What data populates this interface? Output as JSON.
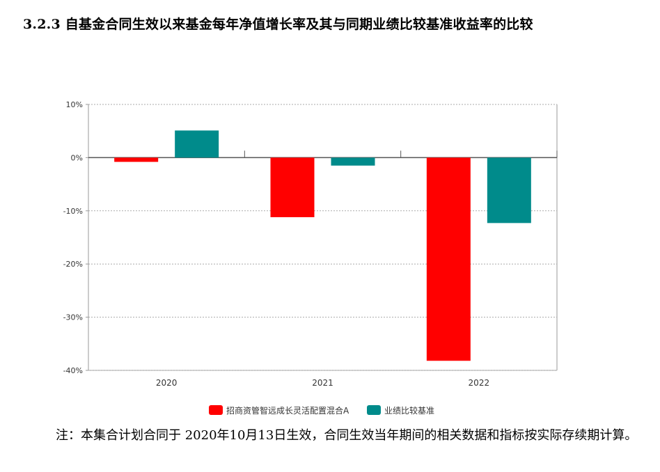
{
  "heading": "3.2.3 自基金合同生效以来基金每年净值增长率及其与同期业绩比较基准收益率的比较",
  "chart_data": {
    "type": "bar",
    "categories": [
      "2020",
      "2021",
      "2022"
    ],
    "series": [
      {
        "name": "招商资管智远成长灵活配置混合A",
        "values": [
          -0.8,
          -11.2,
          -38.2
        ],
        "color": "#ff0000"
      },
      {
        "name": "业绩比较基准",
        "values": [
          5.1,
          -1.5,
          -12.3
        ],
        "color": "#008b8b"
      }
    ],
    "ylim": [
      -40,
      10
    ],
    "yticks": [
      10,
      0,
      -10,
      -20,
      -30,
      -40
    ],
    "ytick_labels": [
      "10%",
      "0%",
      "-10%",
      "-20%",
      "-30%",
      "-40%"
    ],
    "grid": true,
    "legend": "bottom-center"
  },
  "note": "注：本集合计划合同于 2020年10月13日生效，合同生效当年期间的相关数据和指标按实际存续期计算。"
}
